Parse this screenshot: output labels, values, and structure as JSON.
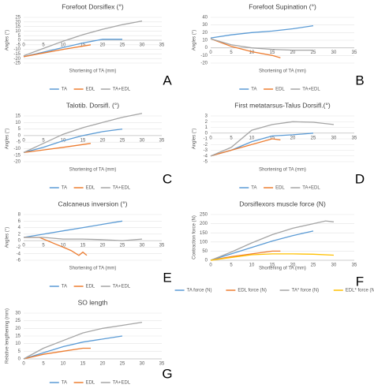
{
  "chart_data": [
    {
      "type": "line",
      "title": "Forefoot Dorsiflex (°)",
      "y_label": "Angles (°)",
      "x_label": "Shortening of TA (mm)",
      "label": "A",
      "xlim": [
        0,
        35
      ],
      "xticks": [
        0,
        5,
        10,
        15,
        20,
        25,
        30,
        35
      ],
      "ylim": [
        -25,
        25
      ],
      "yticks": [
        -25,
        -20,
        -15,
        -10,
        -5,
        0,
        5,
        10,
        15,
        20,
        25
      ],
      "grid": true,
      "series": [
        {
          "name": "TA",
          "color": "#5b9bd5",
          "x": [
            0,
            5,
            10,
            15,
            20,
            25
          ],
          "values": [
            -18,
            -13,
            -8,
            -3,
            1,
            1
          ]
        },
        {
          "name": "EDL",
          "color": "#ed7d31",
          "x": [
            0,
            5,
            10,
            17
          ],
          "values": [
            -18,
            -14,
            -10,
            -5
          ]
        },
        {
          "name": "TA+EDL",
          "color": "#a5a5a5",
          "x": [
            0,
            5,
            10,
            15,
            20,
            25,
            30
          ],
          "values": [
            -17,
            -9,
            -1,
            6,
            12,
            17,
            21
          ]
        }
      ]
    },
    {
      "type": "line",
      "title": "Forefoot Supination (°)",
      "y_label": "Angles (°)",
      "x_label": "Shortening of TA (mm)",
      "label": "B",
      "xlim": [
        0,
        35
      ],
      "xticks": [
        0,
        5,
        10,
        15,
        20,
        25,
        30,
        35
      ],
      "ylim": [
        -20,
        40
      ],
      "yticks": [
        -20,
        -10,
        0,
        10,
        20,
        30,
        40
      ],
      "grid": true,
      "series": [
        {
          "name": "TA",
          "color": "#5b9bd5",
          "x": [
            0,
            5,
            10,
            15,
            20,
            25
          ],
          "values": [
            13,
            17,
            20,
            22,
            25,
            29
          ]
        },
        {
          "name": "EDL",
          "color": "#ed7d31",
          "x": [
            0,
            5,
            10,
            15,
            17
          ],
          "values": [
            12,
            2,
            -5,
            -10,
            -13
          ]
        },
        {
          "name": "TA+EDL",
          "color": "#a5a5a5",
          "x": [
            0,
            5,
            10,
            15,
            20,
            25
          ],
          "values": [
            12,
            4,
            0,
            -2,
            -3,
            -3
          ]
        }
      ]
    },
    {
      "type": "line",
      "title": "Talotib. Dorsifl. (°)",
      "y_label": "Angles (°)",
      "x_label": "Shortening of TA (mm)",
      "label": "C",
      "xlim": [
        0,
        35
      ],
      "xticks": [
        0,
        5,
        10,
        15,
        20,
        25,
        30,
        35
      ],
      "ylim": [
        -20,
        15
      ],
      "yticks": [
        -20,
        -15,
        -10,
        -5,
        0,
        5,
        10,
        15
      ],
      "grid": true,
      "series": [
        {
          "name": "TA",
          "color": "#5b9bd5",
          "x": [
            0,
            5,
            10,
            15,
            20,
            25
          ],
          "values": [
            -13,
            -9,
            -4,
            0,
            3,
            5
          ]
        },
        {
          "name": "EDL",
          "color": "#ed7d31",
          "x": [
            0,
            5,
            10,
            17
          ],
          "values": [
            -13,
            -11,
            -9,
            -6
          ]
        },
        {
          "name": "TA+EDL",
          "color": "#a5a5a5",
          "x": [
            0,
            5,
            10,
            15,
            20,
            25,
            30
          ],
          "values": [
            -13,
            -6,
            1,
            6,
            10,
            14,
            17
          ]
        }
      ]
    },
    {
      "type": "line",
      "title": "First metatarsus-Talus Dorsifl.(°)",
      "y_label": "Angles (°)",
      "x_label": "Shortening of TA (mm)",
      "label": "D",
      "xlim": [
        0,
        35
      ],
      "xticks": [
        0,
        5,
        10,
        15,
        20,
        25,
        30,
        35
      ],
      "ylim": [
        -5,
        3
      ],
      "yticks": [
        -5,
        -4,
        -3,
        -2,
        -1,
        0,
        1,
        2,
        3
      ],
      "grid": true,
      "series": [
        {
          "name": "TA",
          "color": "#5b9bd5",
          "x": [
            0,
            5,
            10,
            15,
            20,
            25
          ],
          "values": [
            -4,
            -3,
            -1.5,
            -0.5,
            -0.3,
            0
          ]
        },
        {
          "name": "EDL",
          "color": "#ed7d31",
          "x": [
            0,
            5,
            10,
            15,
            17
          ],
          "values": [
            -4,
            -3,
            -2,
            -1,
            -1.2
          ]
        },
        {
          "name": "TA+EDL",
          "color": "#a5a5a5",
          "x": [
            0,
            5,
            10,
            15,
            20,
            25,
            30
          ],
          "values": [
            -4,
            -2.5,
            0.5,
            1.5,
            2,
            1.9,
            1.5
          ]
        }
      ]
    },
    {
      "type": "line",
      "title": "Calcaneus inversion (°)",
      "y_label": "Angles (°)",
      "x_label": "Shortening of TA (mm)",
      "label": "E",
      "xlim": [
        0,
        35
      ],
      "xticks": [
        0,
        5,
        10,
        15,
        20,
        25,
        30,
        35
      ],
      "ylim": [
        -6,
        8
      ],
      "yticks": [
        -6,
        -4,
        -2,
        0,
        2,
        4,
        6,
        8
      ],
      "grid": true,
      "series": [
        {
          "name": "TA",
          "color": "#5b9bd5",
          "x": [
            0,
            5,
            10,
            15,
            20,
            25
          ],
          "values": [
            1,
            2,
            3,
            4,
            5,
            6
          ]
        },
        {
          "name": "EDL",
          "color": "#ed7d31",
          "x": [
            0,
            4,
            6,
            8,
            10,
            12,
            14,
            15,
            16
          ],
          "values": [
            1,
            1,
            0,
            -1,
            -2,
            -3,
            -4.5,
            -3.5,
            -4.5
          ]
        },
        {
          "name": "TA+EDL",
          "color": "#a5a5a5",
          "x": [
            0,
            5,
            10,
            15,
            20,
            25,
            30
          ],
          "values": [
            1,
            1,
            0.5,
            0.5,
            0.3,
            0,
            0.5
          ]
        }
      ]
    },
    {
      "type": "line",
      "title": "Dorsiflexors muscle force (N)",
      "y_label": "Contraction force (N)",
      "x_label": "Shortening of TA (mm)",
      "label": "F",
      "xlim": [
        0,
        35
      ],
      "xticks": [
        0,
        5,
        10,
        15,
        20,
        25,
        30,
        35
      ],
      "ylim": [
        0,
        250
      ],
      "yticks": [
        0,
        50,
        100,
        150,
        200,
        250
      ],
      "grid": true,
      "series": [
        {
          "name": "TA force (N)",
          "color": "#5b9bd5",
          "x": [
            0,
            5,
            10,
            15,
            20,
            25
          ],
          "values": [
            0,
            35,
            70,
            105,
            135,
            160
          ]
        },
        {
          "name": "EDL force (N)",
          "color": "#ed7d31",
          "x": [
            0,
            5,
            10,
            15,
            17
          ],
          "values": [
            0,
            20,
            35,
            50,
            50
          ]
        },
        {
          "name": "TA* force (N)",
          "color": "#a5a5a5",
          "x": [
            0,
            5,
            10,
            15,
            20,
            25,
            28,
            30
          ],
          "values": [
            0,
            45,
            95,
            140,
            175,
            200,
            215,
            210
          ]
        },
        {
          "name": "EDL* force (N)",
          "color": "#ffc000",
          "x": [
            0,
            5,
            10,
            15,
            20,
            25,
            30
          ],
          "values": [
            0,
            15,
            30,
            35,
            35,
            33,
            28
          ]
        }
      ]
    },
    {
      "type": "line",
      "title": "SO length",
      "y_label": "Relative lengthening (mm)",
      "label": "G",
      "xlim": [
        0,
        35
      ],
      "xticks": [
        0,
        5,
        10,
        15,
        20,
        25,
        30,
        35
      ],
      "ylim": [
        0,
        30
      ],
      "yticks": [
        0,
        5,
        10,
        15,
        20,
        25,
        30
      ],
      "grid": true,
      "series": [
        {
          "name": "TA",
          "color": "#5b9bd5",
          "x": [
            0,
            5,
            10,
            15,
            20,
            25
          ],
          "values": [
            0,
            4,
            8,
            11,
            13,
            15
          ]
        },
        {
          "name": "EDL",
          "color": "#ed7d31",
          "x": [
            0,
            5,
            10,
            15,
            17
          ],
          "values": [
            0,
            3,
            5,
            7,
            7
          ]
        },
        {
          "name": "TA+EDL",
          "color": "#a5a5a5",
          "x": [
            0,
            5,
            10,
            15,
            20,
            25,
            30
          ],
          "values": [
            0,
            7,
            12,
            17,
            20,
            22,
            24
          ]
        }
      ]
    }
  ]
}
